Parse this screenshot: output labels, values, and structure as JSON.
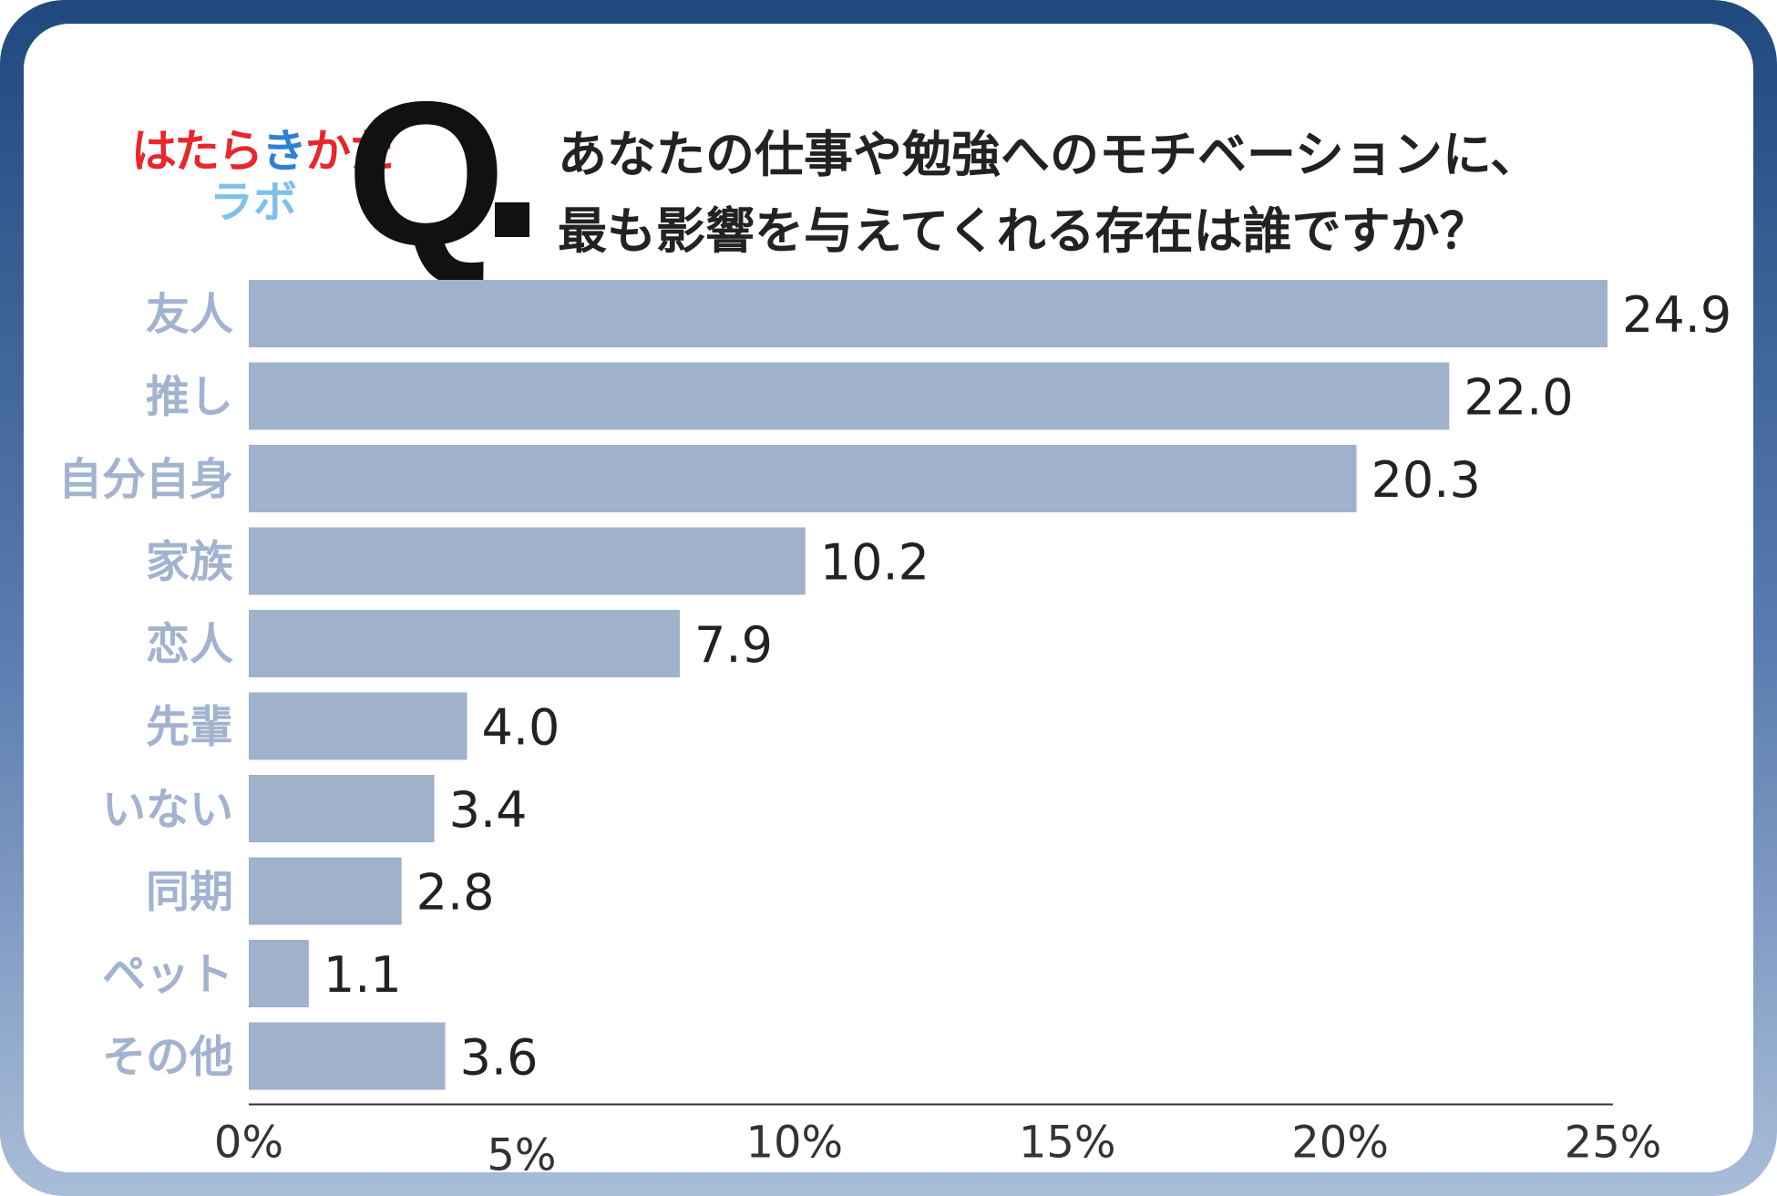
{
  "colors": {
    "bar": "#a0b2cb",
    "frame_top": "#21497f",
    "frame_bottom": "#a9bdd8",
    "category_text": "#a2b3cf",
    "value_text": "#222222",
    "logo_red": "#e8262c",
    "logo_blue": "#2f7fd6",
    "logo_lightblue": "#7fc0ea"
  },
  "logo": {
    "line1": "はたらきかた",
    "line2": "ラボ"
  },
  "question": {
    "mark": "Q",
    "line1": "あなたの仕事や勉強へのモチベーションに、",
    "line2": "最も影響を与えてくれる存在は誰ですか？"
  },
  "chart_data": {
    "type": "bar",
    "orientation": "horizontal",
    "categories": [
      "友人",
      "推し",
      "自分自身",
      "家族",
      "恋人",
      "先輩",
      "いない",
      "同期",
      "ペット",
      "その他"
    ],
    "values": [
      24.9,
      22.0,
      20.3,
      10.2,
      7.9,
      4.0,
      3.4,
      2.8,
      1.1,
      3.6
    ],
    "value_labels": [
      "24.9",
      "22.0",
      "20.3",
      "10.2",
      "7.9",
      "4.0",
      "3.4",
      "2.8",
      "1.1",
      "3.6"
    ],
    "xlim": [
      0,
      25
    ],
    "x_ticks": [
      0,
      5,
      10,
      15,
      20,
      25
    ],
    "x_tick_labels": [
      "0%",
      "5%",
      "10%",
      "15%",
      "20%",
      "25%"
    ],
    "grid": false
  }
}
